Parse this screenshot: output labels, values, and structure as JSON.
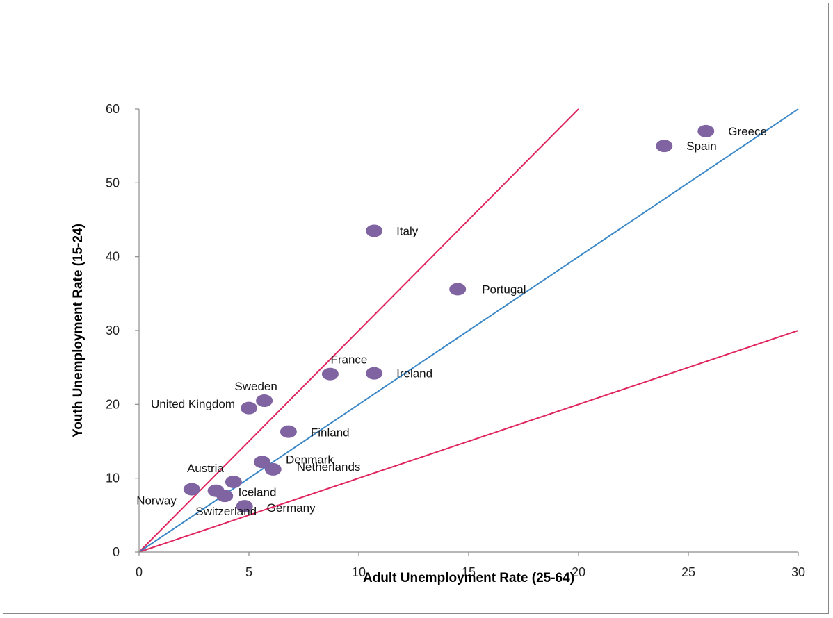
{
  "chart_data": {
    "type": "scatter",
    "title": "",
    "xlabel": "Adult Unemployment Rate (25-64)",
    "ylabel": "Youth Unemployment Rate (15-24)",
    "xlim": [
      0,
      30
    ],
    "ylim": [
      0,
      60
    ],
    "xticks": [
      "0",
      "5",
      "10",
      "15",
      "20",
      "25",
      "30"
    ],
    "yticks": [
      "0",
      "10",
      "20",
      "30",
      "40",
      "50",
      "60"
    ],
    "grid": false,
    "legend": "none",
    "point_color": "#8064a2",
    "points": [
      {
        "label": "Greece",
        "x": 25.8,
        "y": 57.0
      },
      {
        "label": "Spain",
        "x": 23.9,
        "y": 55.0
      },
      {
        "label": "Italy",
        "x": 10.7,
        "y": 43.5
      },
      {
        "label": "Portugal",
        "x": 14.5,
        "y": 35.6
      },
      {
        "label": "France",
        "x": 8.7,
        "y": 24.1
      },
      {
        "label": "Ireland",
        "x": 10.7,
        "y": 24.2
      },
      {
        "label": "Sweden",
        "x": 5.7,
        "y": 20.5
      },
      {
        "label": "United Kingdom",
        "x": 5.0,
        "y": 19.5
      },
      {
        "label": "Finland",
        "x": 6.8,
        "y": 16.3
      },
      {
        "label": "Denmark",
        "x": 5.6,
        "y": 12.2
      },
      {
        "label": "Netherlands",
        "x": 6.1,
        "y": 11.2
      },
      {
        "label": "Austria",
        "x": 4.3,
        "y": 9.5
      },
      {
        "label": "Norway",
        "x": 2.4,
        "y": 8.5
      },
      {
        "label": "Iceland",
        "x": 3.5,
        "y": 8.3
      },
      {
        "label": "Switzerland",
        "x": 3.9,
        "y": 7.6
      },
      {
        "label": "Germany",
        "x": 4.8,
        "y": 6.2
      }
    ],
    "reference_lines": [
      {
        "slope": 3,
        "color": "#e0245e"
      },
      {
        "slope": 2,
        "color": "#3a87c8"
      },
      {
        "slope": 1,
        "color": "#e0245e"
      }
    ]
  }
}
